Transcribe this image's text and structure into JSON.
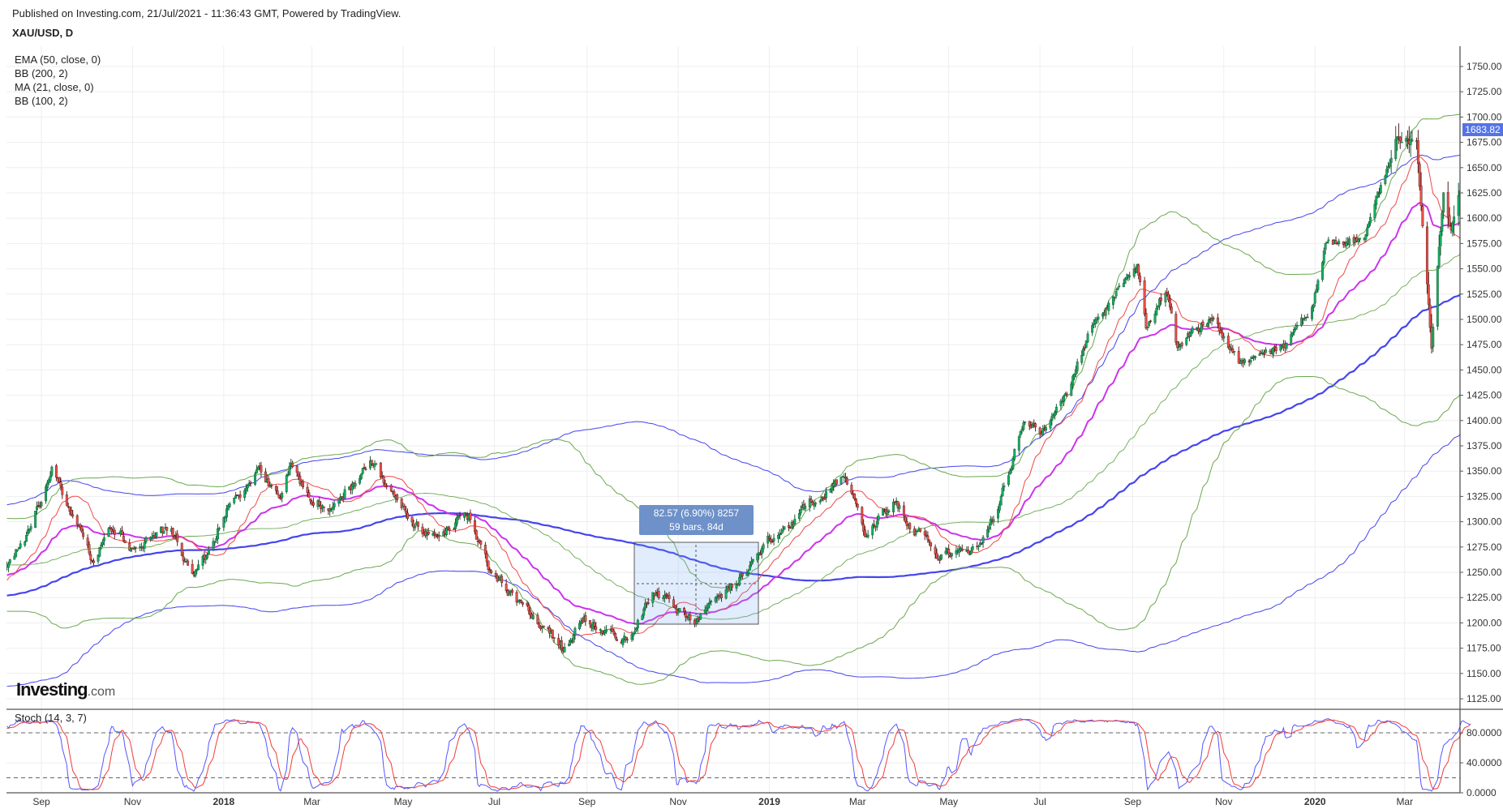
{
  "header": {
    "published": "Published on Investing.com, 21/Jul/2021 - 11:36:43 GMT, Powered by TradingView.",
    "symbol": "XAU/USD, D"
  },
  "legend": [
    "EMA (50, close, 0)",
    "BB (200, 2)",
    "MA (21, close, 0)",
    "BB (100, 2)"
  ],
  "logo": {
    "main": "Investing",
    "suffix": ".com"
  },
  "measure": {
    "line1": "82.57 (6.90%) 8257",
    "line2": "59 bars, 84d"
  },
  "current_price": "1683.82",
  "colors": {
    "up": "#12b062",
    "down": "#f0524c",
    "ema50": "#cc33ee",
    "ma21": "#f04848",
    "bb200": "#4444ee",
    "bb100": "#6aa84f",
    "stochK": "#5555ff",
    "stochD": "#f03c3c",
    "price_tag": "#5673e6"
  },
  "chart_data": [
    {
      "type": "candlestick",
      "title": "XAU/USD, D",
      "ylim": [
        1112,
        1765
      ],
      "y_ticks": [
        "1750.00",
        "1725.00",
        "1700.00",
        "1675.00",
        "1650.00",
        "1625.00",
        "1600.00",
        "1575.00",
        "1550.00",
        "1525.00",
        "1500.00",
        "1475.00",
        "1450.00",
        "1425.00",
        "1400.00",
        "1375.00",
        "1350.00",
        "1325.00",
        "1300.00",
        "1275.00",
        "1250.00",
        "1225.00",
        "1200.00",
        "1175.00",
        "1150.00",
        "1125.00"
      ],
      "x_ticks": [
        {
          "label": "Sep",
          "date": "2017-09-01",
          "bold": false
        },
        {
          "label": "Nov",
          "date": "2017-11-01",
          "bold": false
        },
        {
          "label": "2018",
          "date": "2018-01-01",
          "bold": true
        },
        {
          "label": "Mar",
          "date": "2018-03-01",
          "bold": false
        },
        {
          "label": "May",
          "date": "2018-05-01",
          "bold": false
        },
        {
          "label": "Jul",
          "date": "2018-07-01",
          "bold": false
        },
        {
          "label": "Sep",
          "date": "2018-09-01",
          "bold": false
        },
        {
          "label": "Nov",
          "date": "2018-11-01",
          "bold": false
        },
        {
          "label": "2019",
          "date": "2019-01-01",
          "bold": true
        },
        {
          "label": "Mar",
          "date": "2019-03-01",
          "bold": false
        },
        {
          "label": "May",
          "date": "2019-05-01",
          "bold": false
        },
        {
          "label": "Jul",
          "date": "2019-07-01",
          "bold": false
        },
        {
          "label": "Sep",
          "date": "2019-09-01",
          "bold": false
        },
        {
          "label": "Nov",
          "date": "2019-11-01",
          "bold": false
        },
        {
          "label": "2020",
          "date": "2020-01-01",
          "bold": true
        },
        {
          "label": "Mar",
          "date": "2020-03-01",
          "bold": false
        }
      ],
      "close_anchors": [
        [
          "2017-08-08",
          1258
        ],
        [
          "2017-08-25",
          1290
        ],
        [
          "2017-09-08",
          1350
        ],
        [
          "2017-09-20",
          1310
        ],
        [
          "2017-10-06",
          1262
        ],
        [
          "2017-10-16",
          1300
        ],
        [
          "2017-11-01",
          1275
        ],
        [
          "2017-11-27",
          1295
        ],
        [
          "2017-12-12",
          1242
        ],
        [
          "2018-01-05",
          1320
        ],
        [
          "2018-01-25",
          1355
        ],
        [
          "2018-02-08",
          1315
        ],
        [
          "2018-02-15",
          1355
        ],
        [
          "2018-03-01",
          1318
        ],
        [
          "2018-03-15",
          1318
        ],
        [
          "2018-04-11",
          1360
        ],
        [
          "2018-04-25",
          1322
        ],
        [
          "2018-05-15",
          1290
        ],
        [
          "2018-06-14",
          1305
        ],
        [
          "2018-06-28",
          1250
        ],
        [
          "2018-07-18",
          1220
        ],
        [
          "2018-08-16",
          1175
        ],
        [
          "2018-08-30",
          1202
        ],
        [
          "2018-09-27",
          1185
        ],
        [
          "2018-10-15",
          1228
        ],
        [
          "2018-11-13",
          1202
        ],
        [
          "2018-12-03",
          1230
        ],
        [
          "2018-12-31",
          1280
        ],
        [
          "2019-01-31",
          1320
        ],
        [
          "2019-02-20",
          1345
        ],
        [
          "2019-03-07",
          1285
        ],
        [
          "2019-03-25",
          1320
        ],
        [
          "2019-04-23",
          1268
        ],
        [
          "2019-05-20",
          1275
        ],
        [
          "2019-05-31",
          1305
        ],
        [
          "2019-06-21",
          1400
        ],
        [
          "2019-07-01",
          1385
        ],
        [
          "2019-07-19",
          1425
        ],
        [
          "2019-08-07",
          1500
        ],
        [
          "2019-09-04",
          1552
        ],
        [
          "2019-09-10",
          1490
        ],
        [
          "2019-09-24",
          1530
        ],
        [
          "2019-10-01",
          1470
        ],
        [
          "2019-10-24",
          1505
        ],
        [
          "2019-11-12",
          1455
        ],
        [
          "2019-12-13",
          1475
        ],
        [
          "2019-12-31",
          1518
        ],
        [
          "2020-01-08",
          1575
        ],
        [
          "2020-02-03",
          1580
        ],
        [
          "2020-02-24",
          1675
        ],
        [
          "2020-03-09",
          1680
        ],
        [
          "2020-03-19",
          1475
        ],
        [
          "2020-03-27",
          1625
        ],
        [
          "2020-04-01",
          1590
        ],
        [
          "2020-04-14",
          1683.82
        ]
      ]
    },
    {
      "type": "line",
      "title": "Stoch (14, 3, 7)",
      "ylim": [
        0,
        100
      ],
      "y_ticks": [
        "80.0000",
        "40.0000",
        "0.0000"
      ],
      "levels": [
        80,
        20
      ],
      "series": [
        {
          "name": "%K"
        },
        {
          "name": "%D"
        }
      ]
    }
  ]
}
